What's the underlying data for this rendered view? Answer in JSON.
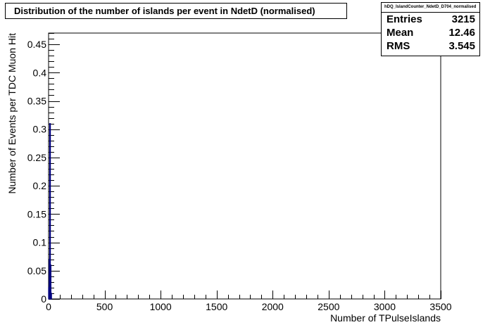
{
  "chart_data": {
    "type": "bar",
    "title": "Distribution of the number of islands per event in NdetD (normalised)",
    "xlabel": "Number of TPulseIslands",
    "ylabel": "Number of Events per TDC Muon Hit",
    "xlim": [
      0,
      3500
    ],
    "ylim": [
      0,
      0.47
    ],
    "xticks": [
      0,
      500,
      1000,
      1500,
      2000,
      2500,
      3000,
      3500
    ],
    "xtick_labels": [
      "0",
      "500",
      "1000",
      "1500",
      "2000",
      "2500",
      "3000",
      "3500"
    ],
    "yticks": [
      0,
      0.05,
      0.1,
      0.15,
      0.2,
      0.25,
      0.3,
      0.35,
      0.4,
      0.45
    ],
    "ytick_labels": [
      "0",
      "0.05",
      "0.1",
      "0.15",
      "0.2",
      "0.25",
      "0.3",
      "0.35",
      "0.4",
      "0.45"
    ],
    "series": [
      {
        "color": "#000080",
        "bins": [
          {
            "x": 0,
            "w": 5,
            "y": 0.02
          },
          {
            "x": 5,
            "w": 5,
            "y": 0.07
          },
          {
            "x": 10,
            "w": 5,
            "y": 0.31
          },
          {
            "x": 15,
            "w": 5,
            "y": 0.06
          },
          {
            "x": 20,
            "w": 5,
            "y": 0.01
          }
        ]
      }
    ],
    "grid": false,
    "legend": "none"
  },
  "stats": {
    "name": "hDQ_IslandCounter_NdetD_D704_normalised",
    "rows": [
      {
        "label": "Entries",
        "value": "3215"
      },
      {
        "label": "Mean",
        "value": "12.46"
      },
      {
        "label": "RMS",
        "value": "3.545"
      }
    ]
  }
}
